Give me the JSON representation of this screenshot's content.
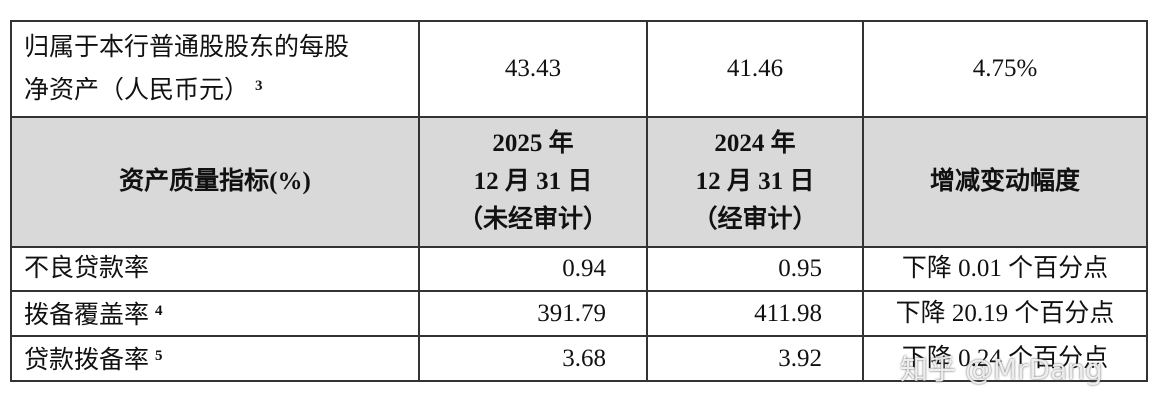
{
  "table": {
    "top_row": {
      "label_lines": [
        "归属于本行普通股股东的每股",
        "净资产（人民币元）"
      ],
      "note": "3",
      "cells": [
        "43.43",
        "41.46",
        "4.75%"
      ]
    },
    "header": [
      [
        "资产质量指标(%)"
      ],
      [
        "2025 年",
        "12 月 31 日",
        "（未经审计）"
      ],
      [
        "2024 年",
        "12 月 31 日",
        "（经审计）"
      ],
      [
        "增减变动幅度"
      ]
    ],
    "rows": [
      {
        "label": "不良贷款率",
        "note": null,
        "cells": [
          "0.94",
          "0.95",
          "下降 0.01 个百分点"
        ]
      },
      {
        "label": "拨备覆盖率",
        "note": "4",
        "cells": [
          "391.79",
          "411.98",
          "下降 20.19 个百分点"
        ]
      },
      {
        "label": "贷款拨备率",
        "note": "5",
        "cells": [
          "3.68",
          "3.92",
          "下降 0.24 个百分点"
        ]
      }
    ]
  },
  "watermark": "知乎 @MrDang"
}
